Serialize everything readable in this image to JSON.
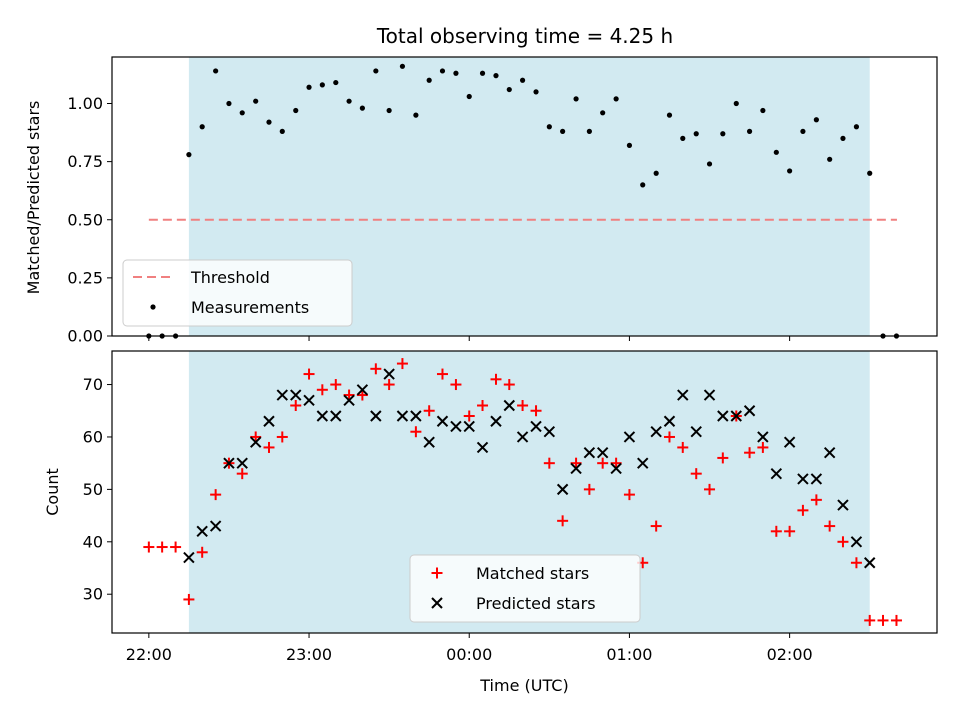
{
  "figure": {
    "title": "Total observing time = 4.25 h"
  },
  "chart_data": [
    {
      "type": "scatter",
      "panel": "top",
      "ylabel": "Matched/Predicted stars",
      "ylim": [
        0,
        1.2
      ],
      "yticks": [
        "0.00",
        "0.25",
        "0.50",
        "0.75",
        "1.00"
      ],
      "xlim": [
        -0.23,
        4.92
      ],
      "xaxis_ticks_shown_on": "bottom panel",
      "grid": false,
      "legend_placement": "lower-left",
      "shaded_span_hours": [
        0.25,
        4.5
      ],
      "threshold": {
        "label": "Threshold",
        "value": 0.5,
        "x_range": [
          0.0,
          4.67
        ],
        "color": "#f08080"
      },
      "series": [
        {
          "name": "Measurements",
          "color": "#000000",
          "points": [
            [
              0.0,
              0.0
            ],
            [
              0.083,
              0.0
            ],
            [
              0.167,
              0.0
            ],
            [
              0.25,
              0.78
            ],
            [
              0.333,
              0.9
            ],
            [
              0.417,
              1.14
            ],
            [
              0.5,
              1.0
            ],
            [
              0.583,
              0.96
            ],
            [
              0.667,
              1.01
            ],
            [
              0.75,
              0.92
            ],
            [
              0.833,
              0.88
            ],
            [
              0.917,
              0.97
            ],
            [
              1.0,
              1.07
            ],
            [
              1.083,
              1.08
            ],
            [
              1.167,
              1.09
            ],
            [
              1.25,
              1.01
            ],
            [
              1.333,
              0.98
            ],
            [
              1.417,
              1.14
            ],
            [
              1.5,
              0.97
            ],
            [
              1.583,
              1.16
            ],
            [
              1.667,
              0.95
            ],
            [
              1.75,
              1.1
            ],
            [
              1.833,
              1.14
            ],
            [
              1.917,
              1.13
            ],
            [
              2.0,
              1.03
            ],
            [
              2.083,
              1.13
            ],
            [
              2.167,
              1.12
            ],
            [
              2.25,
              1.06
            ],
            [
              2.333,
              1.1
            ],
            [
              2.417,
              1.05
            ],
            [
              2.5,
              0.9
            ],
            [
              2.583,
              0.88
            ],
            [
              2.667,
              1.02
            ],
            [
              2.75,
              0.88
            ],
            [
              2.833,
              0.96
            ],
            [
              2.917,
              1.02
            ],
            [
              3.0,
              0.82
            ],
            [
              3.083,
              0.65
            ],
            [
              3.167,
              0.7
            ],
            [
              3.25,
              0.95
            ],
            [
              3.333,
              0.85
            ],
            [
              3.417,
              0.87
            ],
            [
              3.5,
              0.74
            ],
            [
              3.583,
              0.87
            ],
            [
              3.667,
              1.0
            ],
            [
              3.75,
              0.88
            ],
            [
              3.833,
              0.97
            ],
            [
              3.917,
              0.79
            ],
            [
              4.0,
              0.71
            ],
            [
              4.083,
              0.88
            ],
            [
              4.167,
              0.93
            ],
            [
              4.25,
              0.76
            ],
            [
              4.333,
              0.85
            ],
            [
              4.417,
              0.9
            ],
            [
              4.5,
              0.7
            ],
            [
              4.583,
              0.0
            ],
            [
              4.667,
              0.0
            ]
          ]
        }
      ]
    },
    {
      "type": "scatter",
      "panel": "bottom",
      "xlabel": "Time (UTC)",
      "ylabel": "Count",
      "xlim": [
        -0.23,
        4.92
      ],
      "ylim": [
        22.6,
        76.4
      ],
      "xticks": [
        "22:00",
        "23:00",
        "00:00",
        "01:00",
        "02:00"
      ],
      "xtick_hours": [
        0,
        1,
        2,
        3,
        4
      ],
      "yticks": [
        "30",
        "40",
        "50",
        "60",
        "70"
      ],
      "grid": false,
      "legend_placement": "lower-center",
      "shaded_span_hours": [
        0.25,
        4.5
      ],
      "series": [
        {
          "name": "Matched stars",
          "marker": "plus",
          "color": "#ff0000",
          "points": [
            [
              0.0,
              39
            ],
            [
              0.083,
              39
            ],
            [
              0.167,
              39
            ],
            [
              0.25,
              29
            ],
            [
              0.333,
              38
            ],
            [
              0.417,
              49
            ],
            [
              0.5,
              55
            ],
            [
              0.583,
              53
            ],
            [
              0.667,
              60
            ],
            [
              0.75,
              58
            ],
            [
              0.833,
              60
            ],
            [
              0.917,
              66
            ],
            [
              1.0,
              72
            ],
            [
              1.083,
              69
            ],
            [
              1.167,
              70
            ],
            [
              1.25,
              68
            ],
            [
              1.333,
              68
            ],
            [
              1.417,
              73
            ],
            [
              1.5,
              70
            ],
            [
              1.583,
              74
            ],
            [
              1.667,
              61
            ],
            [
              1.75,
              65
            ],
            [
              1.833,
              72
            ],
            [
              1.917,
              70
            ],
            [
              2.0,
              64
            ],
            [
              2.083,
              66
            ],
            [
              2.167,
              71
            ],
            [
              2.25,
              70
            ],
            [
              2.333,
              66
            ],
            [
              2.417,
              65
            ],
            [
              2.5,
              55
            ],
            [
              2.583,
              44
            ],
            [
              2.667,
              55
            ],
            [
              2.75,
              50
            ],
            [
              2.833,
              55
            ],
            [
              2.917,
              55
            ],
            [
              3.0,
              49
            ],
            [
              3.083,
              36
            ],
            [
              3.167,
              43
            ],
            [
              3.25,
              60
            ],
            [
              3.333,
              58
            ],
            [
              3.417,
              53
            ],
            [
              3.5,
              50
            ],
            [
              3.583,
              56
            ],
            [
              3.667,
              64
            ],
            [
              3.75,
              57
            ],
            [
              3.833,
              58
            ],
            [
              3.917,
              42
            ],
            [
              4.0,
              42
            ],
            [
              4.083,
              46
            ],
            [
              4.167,
              48
            ],
            [
              4.25,
              43
            ],
            [
              4.333,
              40
            ],
            [
              4.417,
              36
            ],
            [
              4.5,
              25
            ],
            [
              4.583,
              25
            ],
            [
              4.667,
              25
            ]
          ]
        },
        {
          "name": "Predicted stars",
          "marker": "x",
          "color": "#000000",
          "points": [
            [
              0.25,
              37
            ],
            [
              0.333,
              42
            ],
            [
              0.417,
              43
            ],
            [
              0.5,
              55
            ],
            [
              0.583,
              55
            ],
            [
              0.667,
              59
            ],
            [
              0.75,
              63
            ],
            [
              0.833,
              68
            ],
            [
              0.917,
              68
            ],
            [
              1.0,
              67
            ],
            [
              1.083,
              64
            ],
            [
              1.167,
              64
            ],
            [
              1.25,
              67
            ],
            [
              1.333,
              69
            ],
            [
              1.417,
              64
            ],
            [
              1.5,
              72
            ],
            [
              1.583,
              64
            ],
            [
              1.667,
              64
            ],
            [
              1.75,
              59
            ],
            [
              1.833,
              63
            ],
            [
              1.917,
              62
            ],
            [
              2.0,
              62
            ],
            [
              2.083,
              58
            ],
            [
              2.167,
              63
            ],
            [
              2.25,
              66
            ],
            [
              2.333,
              60
            ],
            [
              2.417,
              62
            ],
            [
              2.5,
              61
            ],
            [
              2.583,
              50
            ],
            [
              2.667,
              54
            ],
            [
              2.75,
              57
            ],
            [
              2.833,
              57
            ],
            [
              2.917,
              54
            ],
            [
              3.0,
              60
            ],
            [
              3.083,
              55
            ],
            [
              3.167,
              61
            ],
            [
              3.25,
              63
            ],
            [
              3.333,
              68
            ],
            [
              3.417,
              61
            ],
            [
              3.5,
              68
            ],
            [
              3.583,
              64
            ],
            [
              3.667,
              64
            ],
            [
              3.75,
              65
            ],
            [
              3.833,
              60
            ],
            [
              3.917,
              53
            ],
            [
              4.0,
              59
            ],
            [
              4.083,
              52
            ],
            [
              4.167,
              52
            ],
            [
              4.25,
              57
            ],
            [
              4.333,
              47
            ],
            [
              4.417,
              40
            ],
            [
              4.5,
              36
            ]
          ]
        }
      ]
    }
  ],
  "style": {
    "shade_color": "#add8e6",
    "shade_opacity": 0.55,
    "threshold_color": "#f08080",
    "matched_color": "#ff0000",
    "predicted_color": "#000000",
    "measurement_color": "#000000",
    "legend_frame_color": "#cccccc"
  }
}
